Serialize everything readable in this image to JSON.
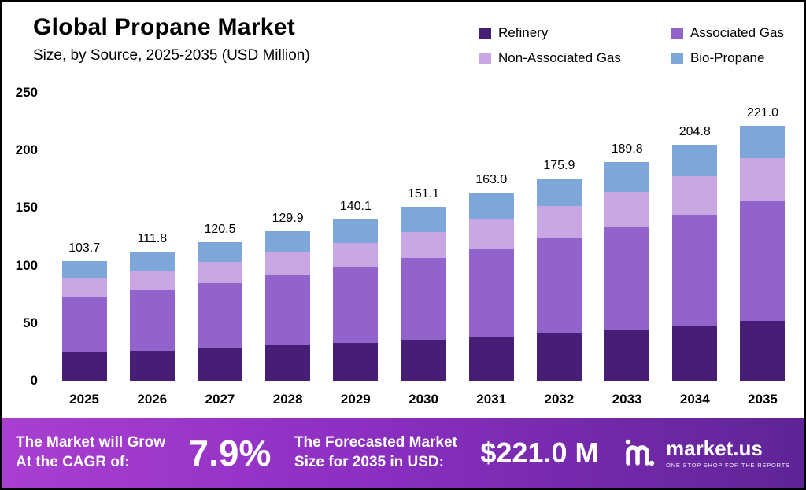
{
  "header": {
    "title": "Global Propane Market",
    "subtitle": "Size, by Source, 2025-2035 (USD Million)"
  },
  "legend": [
    {
      "label": "Refinery",
      "color": "#471e75"
    },
    {
      "label": "Associated Gas",
      "color": "#9263cb"
    },
    {
      "label": "Non-Associated Gas",
      "color": "#c9a7e3"
    },
    {
      "label": "Bio-Propane",
      "color": "#7fa6d9"
    }
  ],
  "chart_data": {
    "type": "bar",
    "stacked": true,
    "title": "Global Propane Market Size, by Source, 2025-2035 (USD Million)",
    "categories": [
      "2025",
      "2026",
      "2027",
      "2028",
      "2029",
      "2030",
      "2031",
      "2032",
      "2033",
      "2034",
      "2035"
    ],
    "series": [
      {
        "name": "Refinery",
        "color": "#471e75",
        "values": [
          24.4,
          26.3,
          28.3,
          30.5,
          32.9,
          35.5,
          38.3,
          41.3,
          44.6,
          48.1,
          51.9
        ]
      },
      {
        "name": "Associated Gas",
        "color": "#9263cb",
        "values": [
          48.7,
          52.5,
          56.6,
          61.1,
          65.8,
          71.0,
          76.6,
          82.7,
          89.2,
          96.3,
          103.9
        ]
      },
      {
        "name": "Non-Associated Gas",
        "color": "#c9a7e3",
        "values": [
          15.6,
          16.8,
          18.1,
          19.5,
          21.0,
          22.7,
          25.6,
          27.9,
          30.5,
          33.4,
          37.2
        ]
      },
      {
        "name": "Bio-Propane",
        "color": "#7fa6d9",
        "values": [
          15.0,
          16.2,
          17.5,
          18.8,
          20.4,
          21.9,
          22.5,
          24.0,
          25.5,
          27.0,
          28.0
        ]
      }
    ],
    "totals": [
      103.7,
      111.8,
      120.5,
      129.9,
      140.1,
      151.1,
      163.0,
      175.9,
      189.8,
      204.8,
      221.0
    ],
    "ylabel": "",
    "ylim": [
      0,
      250
    ],
    "yticks": [
      0,
      50,
      100,
      150,
      200,
      250
    ],
    "grid": false,
    "legend_position": "top-right"
  },
  "footer": {
    "cagr_line1": "The Market will Grow",
    "cagr_line2": "At the CAGR of:",
    "cagr_value": "7.9%",
    "forecast_line1": "The Forecasted Market",
    "forecast_line2": "Size for 2035 in USD:",
    "forecast_value": "$221.0 M",
    "brand": "market.us",
    "brand_tagline": "ONE STOP SHOP FOR THE REPORTS"
  }
}
